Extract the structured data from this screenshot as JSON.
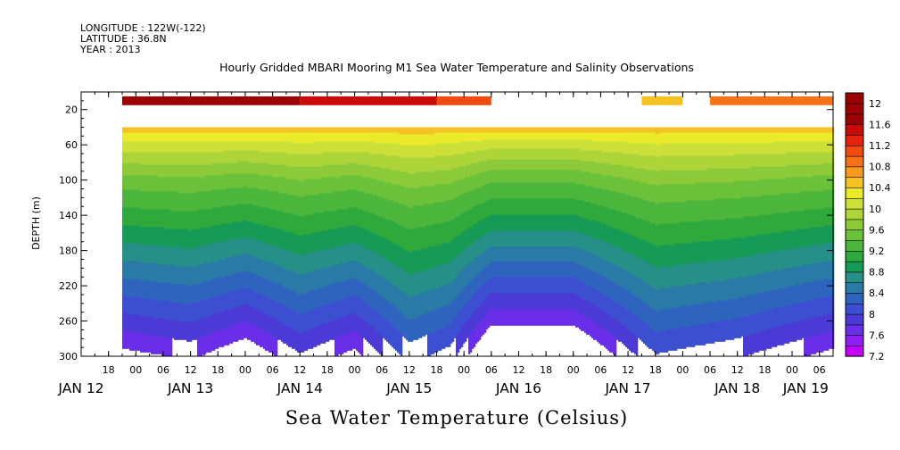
{
  "header": {
    "longitude": "LONGITUDE : 122W(-122)",
    "latitude": "LATITUDE : 36.8N",
    "year": "YEAR : 2013",
    "title": "Hourly Gridded MBARI Mooring M1 Sea Water Temperature and Salinity Observations"
  },
  "footer": {
    "variable_title": "Sea Water Temperature (Celsius)"
  },
  "colors": {
    "background": "#ffffff",
    "missing_data": "#ffffff",
    "palette_low_to_high": [
      "#c400ff",
      "#8f1ff5",
      "#6a2de8",
      "#4c3ad6",
      "#3c4fd0",
      "#2f64be",
      "#2a7aa8",
      "#268f88",
      "#169a55",
      "#2fa83c",
      "#4cb53b",
      "#6cc13a",
      "#8dca3a",
      "#add53a",
      "#cde03a",
      "#eaea2a",
      "#f5c224",
      "#f79a1e",
      "#f67218",
      "#f24b12",
      "#e7220c",
      "#c80a08",
      "#9b0303"
    ]
  },
  "chart_data": {
    "type": "heatmap",
    "title": "Hourly Gridded MBARI Mooring M1 Sea Water Temperature and Salinity Observations",
    "xlabel": "",
    "ylabel": "DEPTH (m)",
    "y_inverted": true,
    "ylim": [
      300,
      0
    ],
    "yticks": [
      20,
      60,
      100,
      140,
      180,
      220,
      260,
      300
    ],
    "x_axis": {
      "start": "2013-01-12 12:00",
      "end": "2013-01-19 09:00",
      "hour_ticks": [
        {
          "day": "JAN 12",
          "hour": 18,
          "label": "18"
        },
        {
          "day": "JAN 13",
          "hour": 0,
          "label": "00"
        },
        {
          "day": "JAN 13",
          "hour": 6,
          "label": "06"
        },
        {
          "day": "JAN 13",
          "hour": 12,
          "label": "12"
        },
        {
          "day": "JAN 13",
          "hour": 18,
          "label": "18"
        },
        {
          "day": "JAN 14",
          "hour": 0,
          "label": "00"
        },
        {
          "day": "JAN 14",
          "hour": 6,
          "label": "06"
        },
        {
          "day": "JAN 14",
          "hour": 12,
          "label": "12"
        },
        {
          "day": "JAN 14",
          "hour": 18,
          "label": "18"
        },
        {
          "day": "JAN 15",
          "hour": 0,
          "label": "00"
        },
        {
          "day": "JAN 15",
          "hour": 6,
          "label": "06"
        },
        {
          "day": "JAN 15",
          "hour": 12,
          "label": "12"
        },
        {
          "day": "JAN 15",
          "hour": 18,
          "label": "18"
        },
        {
          "day": "JAN 16",
          "hour": 0,
          "label": "00"
        },
        {
          "day": "JAN 16",
          "hour": 6,
          "label": "06"
        },
        {
          "day": "JAN 16",
          "hour": 12,
          "label": "12"
        },
        {
          "day": "JAN 16",
          "hour": 18,
          "label": "18"
        },
        {
          "day": "JAN 17",
          "hour": 0,
          "label": "00"
        },
        {
          "day": "JAN 17",
          "hour": 6,
          "label": "06"
        },
        {
          "day": "JAN 17",
          "hour": 12,
          "label": "12"
        },
        {
          "day": "JAN 17",
          "hour": 18,
          "label": "18"
        },
        {
          "day": "JAN 18",
          "hour": 0,
          "label": "00"
        },
        {
          "day": "JAN 18",
          "hour": 6,
          "label": "06"
        },
        {
          "day": "JAN 18",
          "hour": 12,
          "label": "12"
        },
        {
          "day": "JAN 18",
          "hour": 18,
          "label": "18"
        },
        {
          "day": "JAN 19",
          "hour": 0,
          "label": "00"
        },
        {
          "day": "JAN 19",
          "hour": 6,
          "label": "06"
        }
      ],
      "day_labels": [
        {
          "day": "JAN 12",
          "hour": 12,
          "label": "JAN 12"
        },
        {
          "day": "JAN 13",
          "hour": 12,
          "label": "JAN 13"
        },
        {
          "day": "JAN 14",
          "hour": 12,
          "label": "JAN 14"
        },
        {
          "day": "JAN 15",
          "hour": 12,
          "label": "JAN 15"
        },
        {
          "day": "JAN 16",
          "hour": 12,
          "label": "JAN 16"
        },
        {
          "day": "JAN 17",
          "hour": 12,
          "label": "JAN 17"
        },
        {
          "day": "JAN 18",
          "hour": 12,
          "label": "JAN 18"
        },
        {
          "day": "JAN 19",
          "hour": 3,
          "label": "JAN 19"
        }
      ]
    },
    "data_start": "2013-01-12 21:00",
    "data_end": "2013-01-19 09:00",
    "shallow_sensor": {
      "depth_range": [
        5,
        15
      ],
      "segments": [
        {
          "start": "2013-01-12 21:00",
          "end": "2013-01-14 12:00",
          "value": 11.8
        },
        {
          "start": "2013-01-14 12:00",
          "end": "2013-01-15 18:00",
          "value": 11.4
        },
        {
          "start": "2013-01-15 18:00",
          "end": "2013-01-16 06:00",
          "value": 11.2
        },
        {
          "start": "2013-01-17 15:00",
          "end": "2013-01-18 00:00",
          "value": 10.6
        },
        {
          "start": "2013-01-18 06:00",
          "end": "2013-01-19 09:00",
          "value": 11.0
        }
      ]
    },
    "profile_top_depth": 40,
    "profile_bottom_depth": 300,
    "profile_times": [
      "2013-01-12 21:00",
      "2013-01-13 12:00",
      "2013-01-14 00:00",
      "2013-01-14 12:00",
      "2013-01-15 00:00",
      "2013-01-15 12:00",
      "2013-01-15 21:00",
      "2013-01-16 06:00",
      "2013-01-17 00:00",
      "2013-01-17 18:00",
      "2013-01-18 12:00",
      "2013-01-19 09:00"
    ],
    "isotherm_depth_scale": [
      {
        "time": "2013-01-12 21:00",
        "scale": 1.0
      },
      {
        "time": "2013-01-13 12:00",
        "scale": 0.95
      },
      {
        "time": "2013-01-14 00:00",
        "scale": 1.05
      },
      {
        "time": "2013-01-14 12:00",
        "scale": 0.9
      },
      {
        "time": "2013-01-15 00:00",
        "scale": 1.0
      },
      {
        "time": "2013-01-15 12:00",
        "scale": 0.78
      },
      {
        "time": "2013-01-15 21:00",
        "scale": 0.85
      },
      {
        "time": "2013-01-16 06:00",
        "scale": 1.12
      },
      {
        "time": "2013-01-17 00:00",
        "scale": 1.12
      },
      {
        "time": "2013-01-17 18:00",
        "scale": 0.82
      },
      {
        "time": "2013-01-18 12:00",
        "scale": 0.88
      },
      {
        "time": "2013-01-19 09:00",
        "scale": 1.0
      }
    ],
    "reference_profile": [
      {
        "depth": 40,
        "value": 10.5
      },
      {
        "depth": 60,
        "value": 10.1
      },
      {
        "depth": 100,
        "value": 9.5
      },
      {
        "depth": 140,
        "value": 9.1
      },
      {
        "depth": 180,
        "value": 8.7
      },
      {
        "depth": 220,
        "value": 8.3
      },
      {
        "depth": 260,
        "value": 7.9
      },
      {
        "depth": 300,
        "value": 7.5
      }
    ],
    "colorbar": {
      "min": 7.2,
      "max": 12.2,
      "step": 0.2,
      "tick_labels": [
        "7.2",
        "7.6",
        "8",
        "8.4",
        "8.8",
        "9.2",
        "9.6",
        "10",
        "10.4",
        "10.8",
        "11.2",
        "11.6",
        "12"
      ]
    }
  }
}
